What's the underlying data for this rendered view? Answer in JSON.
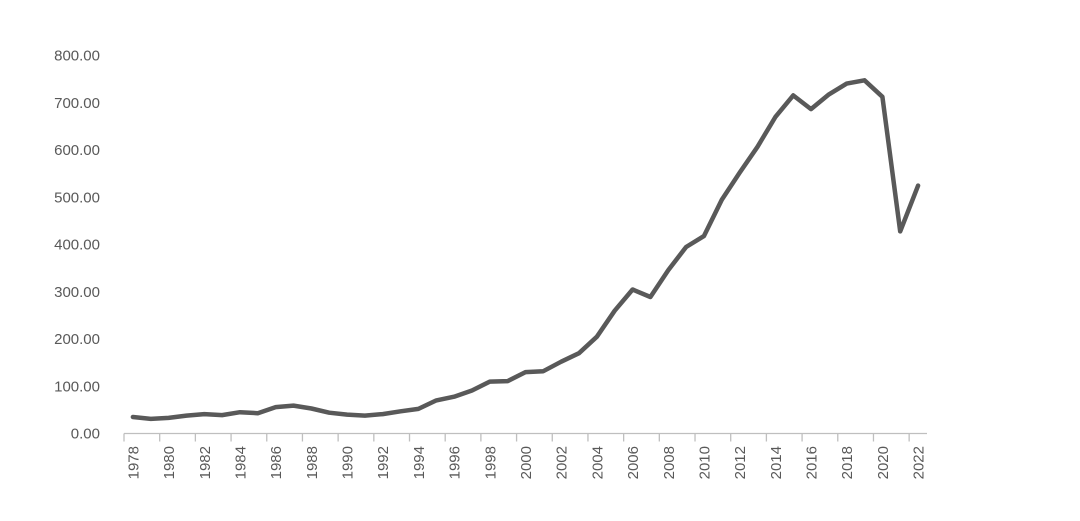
{
  "chart_data": {
    "type": "line",
    "title": "",
    "xlabel": "",
    "ylabel": "",
    "categories": [
      1978,
      1979,
      1980,
      1981,
      1982,
      1983,
      1984,
      1985,
      1986,
      1987,
      1988,
      1989,
      1990,
      1991,
      1992,
      1993,
      1994,
      1995,
      1996,
      1997,
      1998,
      1999,
      2000,
      2001,
      2002,
      2003,
      2004,
      2005,
      2006,
      2007,
      2008,
      2009,
      2010,
      2011,
      2012,
      2013,
      2014,
      2015,
      2016,
      2017,
      2018,
      2019,
      2020,
      2021,
      2022
    ],
    "series": [
      {
        "name": "value",
        "values": [
          35,
          31,
          33,
          38,
          41,
          39,
          45,
          43,
          56,
          59,
          53,
          44,
          40,
          38,
          41,
          47,
          52,
          70,
          78,
          91,
          110,
          111,
          130,
          132,
          152,
          170,
          205,
          260,
          305,
          289,
          346,
          395,
          418,
          495,
          552,
          607,
          670,
          716,
          687,
          718,
          741,
          748,
          713,
          428,
          525
        ],
        "color": "#595959",
        "stroke_width": 4.5
      }
    ],
    "ylim": [
      0,
      800
    ],
    "y_tick_values": [
      0,
      100,
      200,
      300,
      400,
      500,
      600,
      700,
      800
    ],
    "y_tick_labels": [
      "0.00",
      "100.00",
      "200.00",
      "300.00",
      "400.00",
      "500.00",
      "600.00",
      "700.00",
      "800.00"
    ],
    "x_label_interval": 2,
    "x_tick_labels": [
      "1978",
      "1980",
      "1982",
      "1984",
      "1986",
      "1988",
      "1990",
      "1992",
      "1994",
      "1996",
      "1998",
      "2000",
      "2002",
      "2004",
      "2006",
      "2008",
      "2010",
      "2012",
      "2014",
      "2016",
      "2018",
      "2020",
      "2022"
    ],
    "x_label_rotation": -90,
    "grid": "off",
    "legend": "none",
    "axis_color": "#bfbfbf",
    "tick_label_color": "#595959",
    "background_color": "#ffffff"
  }
}
